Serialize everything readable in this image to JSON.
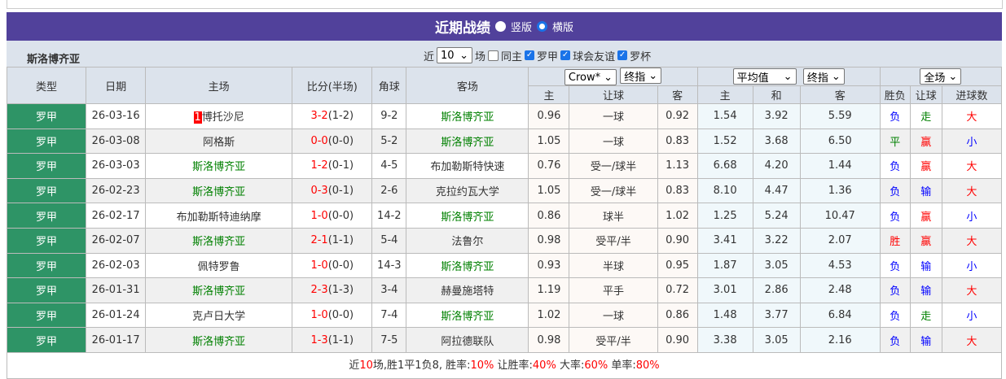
{
  "title": "近期战绩",
  "view_vertical": "竖版",
  "view_horizontal": "横版",
  "team": "斯洛博齐亚",
  "filter": {
    "recent_label": "近",
    "count": "10",
    "unit": "场",
    "same_home": "同主",
    "leagues": [
      "罗甲",
      "球会友谊",
      "罗杯"
    ]
  },
  "odds_selects": {
    "company": "Crow*",
    "handicap_type": "终指",
    "avg": "平均值",
    "avg_type": "终指",
    "scope": "全场"
  },
  "headers": {
    "type": "类型",
    "date": "日期",
    "home": "主场",
    "score": "比分(半场)",
    "corner": "角球",
    "away": "客场",
    "h_home": "主",
    "h_line": "让球",
    "h_away": "客",
    "a_home": "主",
    "a_draw": "和",
    "a_away": "客",
    "wl": "胜负",
    "hc": "让球",
    "ou": "进球数"
  },
  "colors": {
    "title_bg": "#51419b",
    "type_bg": "#2e9466",
    "team_green": "#008000",
    "red": "#ff0000",
    "blue": "#0000ff"
  },
  "rows": [
    {
      "type": "罗甲",
      "date": "26-03-16",
      "home_rank": "1",
      "home": "博托沙尼",
      "home_self": false,
      "score": "3-2",
      "half": "(1-2)",
      "corner": "9-2",
      "away": "斯洛博齐亚",
      "away_self": true,
      "h1": "0.96",
      "hl": "一球",
      "h2": "0.92",
      "a1": "1.54",
      "ad": "3.92",
      "a2": "5.59",
      "wl": "负",
      "hc": "走",
      "ou": "大"
    },
    {
      "type": "罗甲",
      "date": "26-03-08",
      "home": "阿格斯",
      "home_self": false,
      "score": "0-0",
      "half": "(0-0)",
      "corner": "5-2",
      "away": "斯洛博齐亚",
      "away_self": true,
      "h1": "1.05",
      "hl": "一球",
      "h2": "0.83",
      "a1": "1.52",
      "ad": "3.68",
      "a2": "6.50",
      "wl": "平",
      "hc": "赢",
      "ou": "小"
    },
    {
      "type": "罗甲",
      "date": "26-03-03",
      "home": "斯洛博齐亚",
      "home_self": true,
      "score": "1-2",
      "half": "(0-1)",
      "corner": "4-5",
      "away": "布加勒斯特快速",
      "away_self": false,
      "h1": "0.76",
      "hl": "受一/球半",
      "h2": "1.13",
      "a1": "6.68",
      "ad": "4.20",
      "a2": "1.44",
      "wl": "负",
      "hc": "赢",
      "ou": "大"
    },
    {
      "type": "罗甲",
      "date": "26-02-23",
      "home": "斯洛博齐亚",
      "home_self": true,
      "score": "0-3",
      "half": "(0-1)",
      "corner": "2-6",
      "away": "克拉约瓦大学",
      "away_self": false,
      "h1": "1.05",
      "hl": "受一/球半",
      "h2": "0.83",
      "a1": "8.10",
      "ad": "4.47",
      "a2": "1.36",
      "wl": "负",
      "hc": "输",
      "ou": "大"
    },
    {
      "type": "罗甲",
      "date": "26-02-17",
      "home": "布加勒斯特迪纳摩",
      "home_self": false,
      "score": "1-0",
      "half": "(0-0)",
      "corner": "14-2",
      "away": "斯洛博齐亚",
      "away_self": true,
      "h1": "0.86",
      "hl": "球半",
      "h2": "1.02",
      "a1": "1.25",
      "ad": "5.24",
      "a2": "10.47",
      "wl": "负",
      "hc": "赢",
      "ou": "小"
    },
    {
      "type": "罗甲",
      "date": "26-02-07",
      "home": "斯洛博齐亚",
      "home_self": true,
      "score": "2-1",
      "half": "(1-1)",
      "corner": "5-4",
      "away": "法鲁尔",
      "away_self": false,
      "h1": "0.98",
      "hl": "受平/半",
      "h2": "0.90",
      "a1": "3.41",
      "ad": "3.22",
      "a2": "2.07",
      "wl": "胜",
      "hc": "赢",
      "ou": "大"
    },
    {
      "type": "罗甲",
      "date": "26-02-03",
      "home": "佩特罗鲁",
      "home_self": false,
      "score": "1-0",
      "half": "(0-0)",
      "corner": "14-3",
      "away": "斯洛博齐亚",
      "away_self": true,
      "h1": "0.93",
      "hl": "半球",
      "h2": "0.95",
      "a1": "1.87",
      "ad": "3.05",
      "a2": "4.53",
      "wl": "负",
      "hc": "输",
      "ou": "小"
    },
    {
      "type": "罗甲",
      "date": "26-01-31",
      "home": "斯洛博齐亚",
      "home_self": true,
      "score": "2-3",
      "half": "(1-3)",
      "corner": "3-4",
      "away": "赫曼施塔特",
      "away_self": false,
      "h1": "1.19",
      "hl": "平手",
      "h2": "0.72",
      "a1": "3.01",
      "ad": "2.86",
      "a2": "2.48",
      "wl": "负",
      "hc": "输",
      "ou": "大"
    },
    {
      "type": "罗甲",
      "date": "26-01-24",
      "home": "克卢日大学",
      "home_self": false,
      "score": "1-0",
      "half": "(0-0)",
      "corner": "7-4",
      "away": "斯洛博齐亚",
      "away_self": true,
      "h1": "1.02",
      "hl": "一球",
      "h2": "0.86",
      "a1": "1.48",
      "ad": "3.77",
      "a2": "6.84",
      "wl": "负",
      "hc": "走",
      "ou": "小"
    },
    {
      "type": "罗甲",
      "date": "26-01-17",
      "home": "斯洛博齐亚",
      "home_self": true,
      "score": "1-3",
      "half": "(1-1)",
      "corner": "7-5",
      "away": "阿拉德联队",
      "away_self": false,
      "h1": "0.98",
      "hl": "受平/半",
      "h2": "0.90",
      "a1": "3.38",
      "ad": "3.05",
      "a2": "2.16",
      "wl": "负",
      "hc": "输",
      "ou": "大"
    }
  ],
  "summary": {
    "p1": "近",
    "n": "10",
    "p2": "场,胜1平1负8, 胜率:",
    "win": "10%",
    "p3": " 让胜率:",
    "hwin": "40%",
    "p4": " 大率:",
    "big": "60%",
    "p5": " 单率:",
    "odd": "80%"
  }
}
